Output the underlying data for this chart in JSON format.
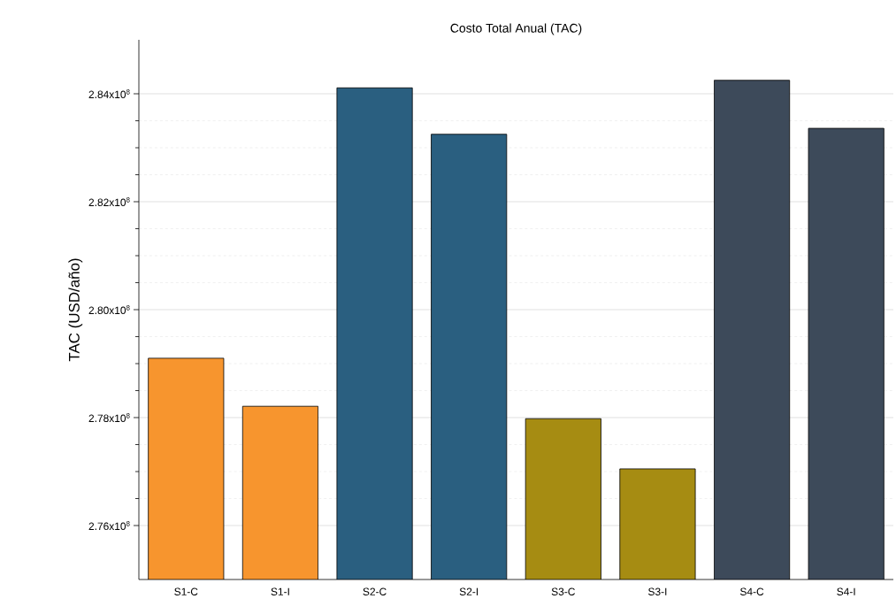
{
  "chart_data": {
    "type": "bar",
    "title": "Costo Total Anual (TAC)",
    "ylabel": "TAC (USD/año)",
    "categories": [
      "S1-C",
      "S1-I",
      "S2-C",
      "S2-I",
      "S3-C",
      "S3-I",
      "S4-C",
      "S4-I"
    ],
    "values": [
      279100000,
      278210000,
      284110000,
      283250000,
      277980000,
      277050000,
      284250000,
      283360000
    ],
    "colors": [
      "#f7952e",
      "#f7952e",
      "#2a5f80",
      "#2a5f80",
      "#a68c12",
      "#a68c12",
      "#3d4a5a",
      "#3d4a5a"
    ],
    "ylim": [
      275000000,
      285000000
    ],
    "yticks": [
      {
        "value": 276000000,
        "label": "2.76x10$^{8}$"
      },
      {
        "value": 278000000,
        "label": "2.78x10$^{8}$"
      },
      {
        "value": 280000000,
        "label": "2.80x10$^{8}$"
      },
      {
        "value": 282000000,
        "label": "2.82x10$^{8}$"
      },
      {
        "value": 284000000,
        "label": "2.84x10$^{8}$"
      }
    ],
    "grid": "y"
  }
}
